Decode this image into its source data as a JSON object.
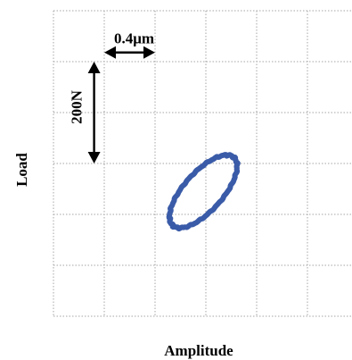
{
  "chart_data": {
    "type": "line",
    "xlabel": "Amplitude",
    "ylabel": "Load",
    "grid": true,
    "grid_cells": {
      "cols": 6,
      "rows": 6
    },
    "scale_bars": {
      "horizontal": {
        "label": "0.4μm",
        "divisions": 1
      },
      "vertical": {
        "label": "200N",
        "divisions": 2
      }
    },
    "series": [
      {
        "center": [
          2.95,
          3.55
        ],
        "semi_major": 0.9,
        "semi_minor": 0.38,
        "tilt_deg": -48
      }
    ],
    "colors": {
      "trace": "#3a5ba8",
      "grid": "#a6a6a6"
    }
  }
}
